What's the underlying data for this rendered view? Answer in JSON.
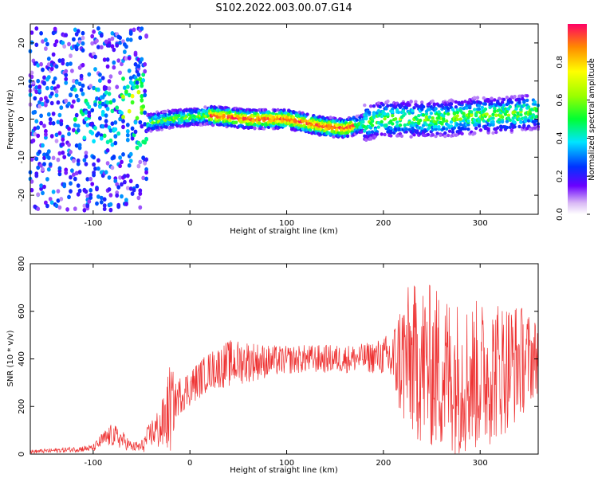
{
  "title": "S102.2022.003.00.07.G14",
  "chart_data": [
    {
      "type": "heatmap",
      "xlabel": "Height of straight line (km)",
      "ylabel": "Frequency (Hz)",
      "xlim": [
        -165,
        360
      ],
      "ylim": [
        -25,
        25
      ],
      "xticks": [
        -100,
        0,
        100,
        200,
        300
      ],
      "yticks": [
        -20,
        -10,
        0,
        10,
        20
      ],
      "colorbar": {
        "label": "Normalized spectral amplitude",
        "range": [
          0,
          1
        ],
        "ticks": [
          0.0,
          0.2,
          0.4,
          0.6,
          0.8
        ]
      },
      "ridge": {
        "x": [
          -45,
          -20,
          0,
          20,
          40,
          60,
          80,
          100,
          120,
          140,
          160,
          180,
          200,
          220,
          240,
          260,
          280,
          300,
          320,
          340,
          355
        ],
        "y": [
          -1,
          0,
          0.5,
          1,
          0.5,
          0,
          0,
          0,
          -1,
          -2,
          -2.5,
          -1,
          0,
          0,
          0,
          0,
          0.5,
          1,
          1,
          1.5,
          2
        ]
      }
    },
    {
      "type": "line",
      "xlabel": "Height of straight line (km)",
      "ylabel": "SNR (10 * v/v)",
      "xlim": [
        -165,
        360
      ],
      "ylim": [
        0,
        800
      ],
      "xticks": [
        -100,
        0,
        100,
        200,
        300
      ],
      "yticks": [
        0,
        200,
        400,
        600,
        800
      ],
      "color": "#ee3333",
      "series": [
        {
          "x": [
            -165,
            -140,
            -120,
            -100,
            -90,
            -80,
            -70,
            -60,
            -50,
            -40,
            -30,
            -25,
            -20,
            -15,
            -10,
            0,
            20,
            40,
            60,
            80,
            100,
            120,
            140,
            160,
            180,
            200,
            210,
            220,
            240,
            260,
            280,
            300,
            320,
            340,
            360
          ],
          "mid": [
            10,
            15,
            20,
            25,
            60,
            80,
            60,
            30,
            30,
            90,
            110,
            150,
            200,
            220,
            250,
            280,
            350,
            380,
            390,
            390,
            395,
            400,
            400,
            400,
            405,
            410,
            395,
            400,
            380,
            350,
            320,
            330,
            360,
            390,
            410
          ],
          "amp": [
            8,
            10,
            12,
            15,
            35,
            50,
            40,
            20,
            30,
            60,
            100,
            140,
            200,
            80,
            80,
            80,
            80,
            100,
            90,
            70,
            60,
            60,
            60,
            60,
            60,
            80,
            140,
            300,
            350,
            350,
            330,
            320,
            300,
            250,
            150
          ]
        }
      ]
    }
  ]
}
